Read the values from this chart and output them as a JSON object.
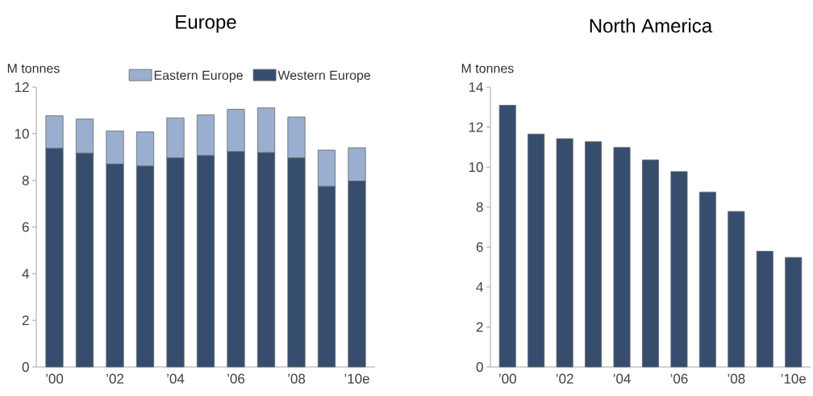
{
  "chart_data": [
    {
      "type": "bar",
      "title": "Europe",
      "ylabel": "M tonnes",
      "stacked": true,
      "legend": "top right",
      "categories": [
        "’00",
        null,
        "’02",
        null,
        "’04",
        null,
        "’06",
        null,
        "’08",
        null,
        "’10e"
      ],
      "series": [
        {
          "name": "Western Europe",
          "color": "#364d6e",
          "values": [
            9.37,
            9.16,
            8.7,
            8.61,
            8.96,
            9.06,
            9.23,
            9.19,
            8.96,
            7.74,
            7.97
          ]
        },
        {
          "name": "Eastern Europe",
          "color": "#9aafcf",
          "values": [
            1.4,
            1.47,
            1.42,
            1.47,
            1.72,
            1.75,
            1.82,
            1.92,
            1.76,
            1.56,
            1.43
          ]
        }
      ],
      "ylim": [
        0,
        12
      ],
      "yticks": [
        0,
        2,
        4,
        6,
        8,
        10,
        12
      ]
    },
    {
      "type": "bar",
      "title": "North America",
      "ylabel": "M tonnes",
      "categories": [
        "’00",
        null,
        "’02",
        null,
        "’04",
        null,
        "’06",
        null,
        "’08",
        null,
        "’10e"
      ],
      "color": "#364d6e",
      "values": [
        13.09,
        11.65,
        11.42,
        11.27,
        10.98,
        10.36,
        9.77,
        8.75,
        7.78,
        5.79,
        5.48
      ],
      "ylim": [
        0,
        14
      ],
      "yticks": [
        0,
        2,
        4,
        6,
        8,
        10,
        12,
        14
      ]
    }
  ]
}
